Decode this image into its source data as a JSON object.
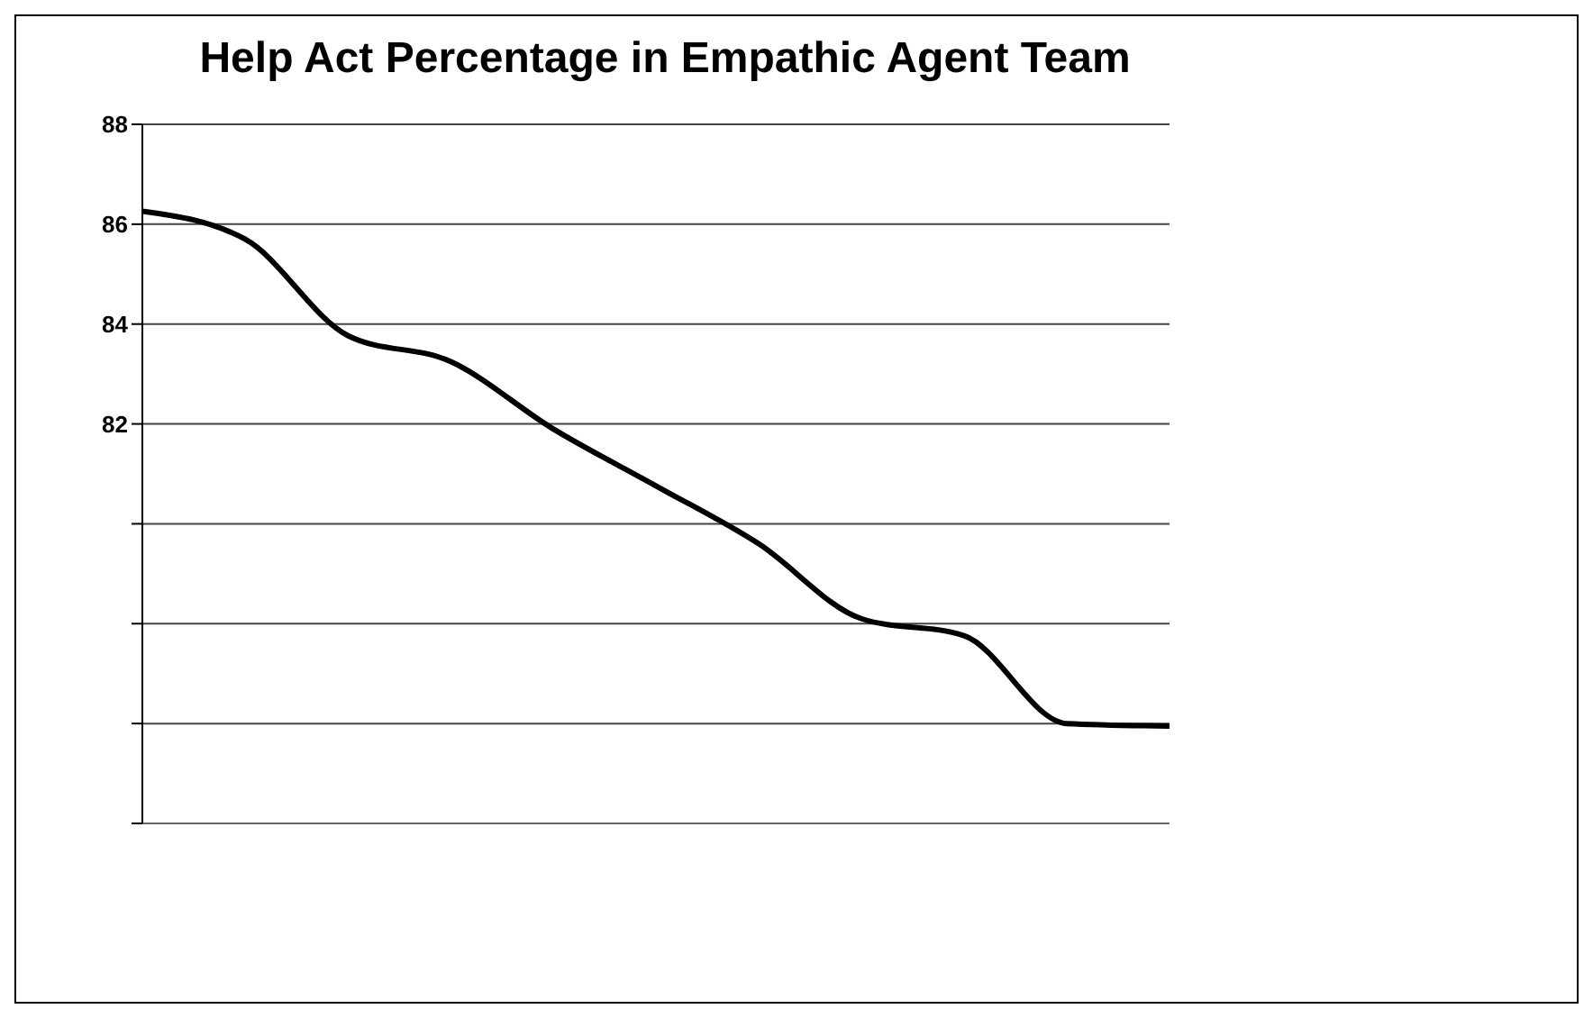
{
  "chart_data": {
    "type": "line",
    "title": "Help Act Percentage in Empathic Agent Team",
    "categories": [
      null,
      null,
      null,
      null,
      null,
      null,
      null,
      null,
      null,
      null,
      null
    ],
    "series": [
      {
        "color": "#000000",
        "values": [
          86.26,
          85.7,
          83.77,
          83.25,
          81.9,
          80.76,
          79.6,
          78.1,
          77.76,
          76.0,
          75.95
        ]
      }
    ],
    "ylim": [
      74,
      88
    ],
    "yticks": [
      {
        "value": 74,
        "label": null
      },
      {
        "value": 76,
        "label": null
      },
      {
        "value": 78,
        "label": null
      },
      {
        "value": 80,
        "label": null
      },
      82,
      84,
      86,
      88
    ],
    "grid": "y",
    "marker": "none",
    "line_style": "solid"
  }
}
